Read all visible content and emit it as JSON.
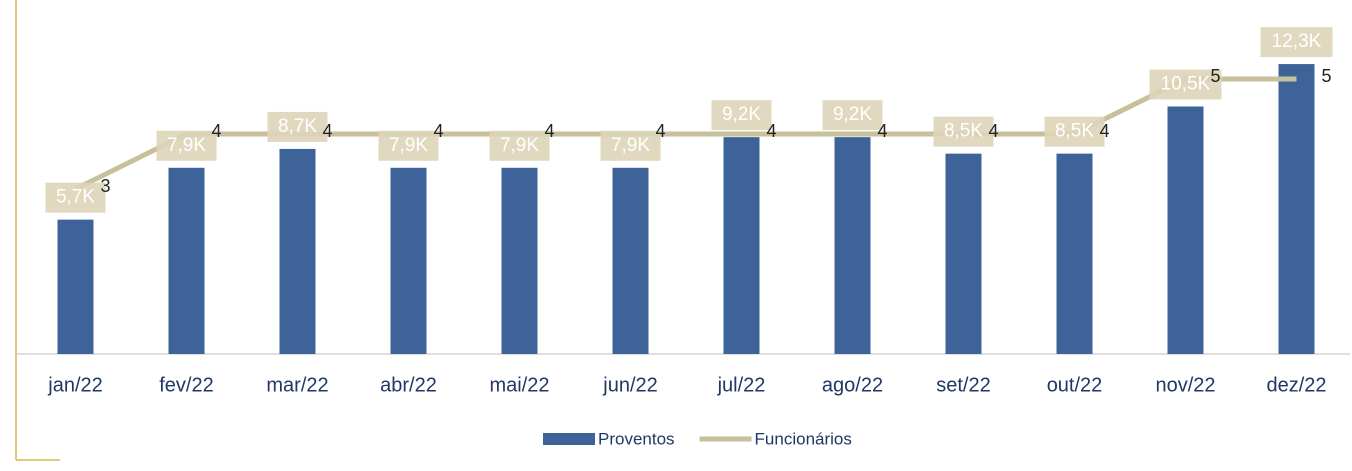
{
  "chart_data": {
    "type": "bar-line",
    "categories": [
      "jan/22",
      "fev/22",
      "mar/22",
      "abr/22",
      "mai/22",
      "jun/22",
      "jul/22",
      "ago/22",
      "set/22",
      "out/22",
      "nov/22",
      "dez/22"
    ],
    "series": [
      {
        "name": "Proventos",
        "type": "bar",
        "color": "#3d6399",
        "values": [
          5700,
          7900,
          8700,
          7900,
          7900,
          7900,
          9200,
          9200,
          8500,
          8500,
          10500,
          12300
        ],
        "value_labels": [
          "5,7K",
          "7,9K",
          "8,7K",
          "7,9K",
          "7,9K",
          "7,9K",
          "9,2K",
          "9,2K",
          "8,5K",
          "8,5K",
          "10,5K",
          "12,3K"
        ]
      },
      {
        "name": "Funcionários",
        "type": "line",
        "axis": "y2",
        "color": "#c8bf9b",
        "values": [
          3,
          4,
          4,
          4,
          4,
          4,
          4,
          4,
          4,
          4,
          5,
          5
        ]
      }
    ],
    "ylim": [
      0,
      14000
    ],
    "y2lim": [
      0,
      6
    ],
    "legend": "bottom"
  }
}
